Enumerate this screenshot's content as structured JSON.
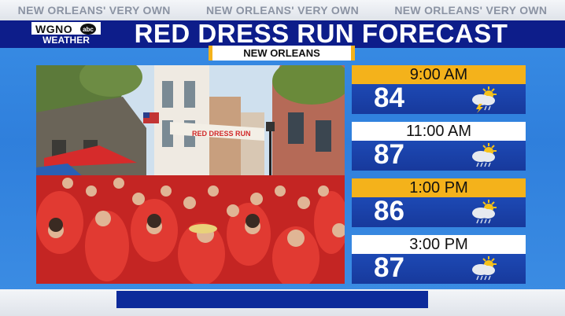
{
  "ticker": [
    "NEW ORLEANS' VERY OWN",
    "NEW ORLEANS' VERY OWN",
    "NEW ORLEANS' VERY OWN"
  ],
  "logo": {
    "call": "WGNO",
    "network": "abc",
    "sub": "WEATHER"
  },
  "title": "RED DRESS RUN FORECAST",
  "location": "NEW ORLEANS",
  "photo": {
    "banner_text": "RED DRESS RUN"
  },
  "forecast": [
    {
      "time": "9:00 AM",
      "temp": "84",
      "icon": "partly-cloudy-thunderstorm-icon",
      "style": "gold"
    },
    {
      "time": "11:00 AM",
      "temp": "87",
      "icon": "partly-cloudy-rain-icon",
      "style": "white"
    },
    {
      "time": "1:00 PM",
      "temp": "86",
      "icon": "partly-cloudy-rain-icon",
      "style": "gold"
    },
    {
      "time": "3:00 PM",
      "temp": "87",
      "icon": "partly-cloudy-rain-icon",
      "style": "white"
    }
  ],
  "colors": {
    "navy": "#0d1d8a",
    "gold": "#f4b21b",
    "panel_blue": "#1d49b4",
    "background_blue": "#3a8fe6"
  }
}
